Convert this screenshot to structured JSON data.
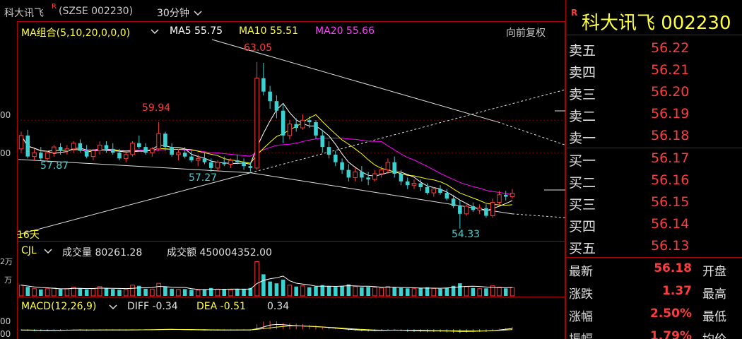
{
  "title_bar": {
    "stock": "科大讯飞",
    "r_marker": "R",
    "code": "(SZSE 002230)",
    "period": "30分钟",
    "period_chevron": "chevron-down-icon"
  },
  "ma_legend": {
    "group": "MA组合(5,10,20,0,0,0)",
    "ma5": "MA5 55.75",
    "ma10": "MA10 55.51",
    "ma20": "MA20 55.66",
    "adjust": "向前复权",
    "colors": {
      "ma5": "#ffffff",
      "ma10": "#ffff00",
      "ma20": "#ff00ff"
    }
  },
  "price_annotations": {
    "high": "63.05",
    "left_high": "59.94",
    "low_left": "57.87",
    "low_mid": "57.27",
    "low_right": "54.33",
    "days": "16天"
  },
  "y_axis_labels": {
    "a": "00",
    "b": "00",
    "vol_a": "2万",
    "vol_b": "万",
    "macd_a": "00",
    "macd_b": "00"
  },
  "volume_legend": {
    "name": "CJL",
    "vol": "成交量 80261.28",
    "amount": "成交额 450004352.00"
  },
  "macd_legend": {
    "name": "MACD(12,26,9)",
    "diff": "DIFF -0.34",
    "dea": "DEA -0.51",
    "macd": "0.34"
  },
  "quote_panel": {
    "r_marker": "R",
    "title": "科大讯飞  002230",
    "sell": [
      {
        "label": "卖五",
        "price": "56.22"
      },
      {
        "label": "卖四",
        "price": "56.21"
      },
      {
        "label": "卖三",
        "price": "56.20"
      },
      {
        "label": "卖二",
        "price": "56.19"
      },
      {
        "label": "卖一",
        "price": "56.18"
      }
    ],
    "buy": [
      {
        "label": "买一",
        "price": "56.17"
      },
      {
        "label": "买二",
        "price": "56.16"
      },
      {
        "label": "买三",
        "price": "56.15"
      },
      {
        "label": "买四",
        "price": "56.14"
      },
      {
        "label": "买五",
        "price": "56.13"
      }
    ],
    "stats": [
      {
        "label": "最新",
        "value": "56.18",
        "label2": "开盘"
      },
      {
        "label": "涨跌",
        "value": "1.37",
        "label2": "最高"
      },
      {
        "label": "涨幅",
        "value": "2.50%",
        "label2": "最低"
      },
      {
        "label": "振幅",
        "value": "1.79%",
        "label2": "均价"
      }
    ]
  },
  "chart_data": {
    "type": "candlestick",
    "unit": "price",
    "ohlc": [
      [
        58.5,
        59.4,
        58.3,
        59.2
      ],
      [
        59.2,
        59.5,
        58.0,
        58.1
      ],
      [
        58.1,
        58.5,
        57.9,
        58.3
      ],
      [
        58.3,
        58.6,
        57.9,
        58.0
      ],
      [
        58.0,
        58.4,
        57.9,
        58.3
      ],
      [
        58.3,
        58.7,
        58.1,
        58.6
      ],
      [
        58.6,
        58.8,
        58.2,
        58.4
      ],
      [
        58.4,
        58.7,
        58.2,
        58.5
      ],
      [
        58.5,
        58.9,
        58.3,
        58.8
      ],
      [
        58.8,
        59.0,
        58.3,
        58.4
      ],
      [
        58.4,
        58.7,
        58.0,
        58.1
      ],
      [
        58.1,
        58.5,
        57.9,
        58.4
      ],
      [
        58.4,
        58.9,
        58.2,
        58.7
      ],
      [
        58.7,
        58.9,
        58.3,
        58.5
      ],
      [
        58.5,
        58.8,
        58.2,
        58.3
      ],
      [
        58.3,
        58.5,
        57.9,
        58.0
      ],
      [
        58.0,
        58.3,
        57.8,
        58.2
      ],
      [
        58.2,
        58.9,
        58.1,
        58.8
      ],
      [
        58.8,
        59.2,
        58.5,
        58.6
      ],
      [
        58.6,
        58.8,
        58.2,
        58.3
      ],
      [
        58.3,
        58.6,
        58.1,
        58.5
      ],
      [
        58.5,
        59.9,
        58.4,
        59.3
      ],
      [
        59.3,
        59.4,
        58.4,
        58.6
      ],
      [
        58.6,
        58.8,
        58.1,
        58.2
      ],
      [
        58.2,
        58.5,
        57.9,
        58.3
      ],
      [
        58.3,
        58.6,
        58.0,
        58.1
      ],
      [
        58.1,
        58.4,
        57.8,
        57.9
      ],
      [
        57.9,
        58.2,
        57.6,
        58.0
      ],
      [
        58.0,
        58.3,
        57.7,
        57.8
      ],
      [
        57.8,
        58.0,
        57.3,
        57.5
      ],
      [
        57.5,
        57.9,
        57.3,
        57.8
      ],
      [
        57.8,
        58.1,
        57.6,
        57.7
      ],
      [
        57.7,
        58.0,
        57.5,
        57.9
      ],
      [
        57.9,
        58.2,
        57.7,
        57.8
      ],
      [
        57.8,
        58.0,
        57.4,
        57.6
      ],
      [
        57.6,
        57.8,
        57.3,
        57.5
      ],
      [
        57.5,
        63.05,
        57.4,
        62.2
      ],
      [
        62.2,
        63.0,
        61.3,
        61.5
      ],
      [
        61.5,
        61.8,
        60.6,
        61.0
      ],
      [
        61.0,
        61.3,
        60.1,
        60.5
      ],
      [
        60.5,
        60.8,
        58.8,
        59.2
      ],
      [
        59.2,
        60.0,
        59.0,
        59.8
      ],
      [
        59.8,
        60.1,
        59.4,
        59.6
      ],
      [
        59.6,
        60.3,
        59.5,
        60.0
      ],
      [
        60.0,
        60.2,
        59.6,
        59.9
      ],
      [
        59.9,
        60.0,
        59.0,
        59.2
      ],
      [
        59.2,
        59.5,
        58.3,
        58.6
      ],
      [
        58.6,
        58.9,
        58.0,
        58.2
      ],
      [
        58.2,
        58.4,
        57.6,
        57.8
      ],
      [
        57.8,
        58.0,
        57.2,
        57.4
      ],
      [
        57.4,
        57.7,
        56.8,
        57.0
      ],
      [
        57.0,
        57.5,
        56.8,
        57.3
      ],
      [
        57.3,
        57.6,
        56.8,
        57.0
      ],
      [
        57.0,
        57.3,
        56.6,
        56.9
      ],
      [
        56.9,
        57.4,
        56.8,
        57.2
      ],
      [
        57.2,
        57.6,
        57.0,
        57.4
      ],
      [
        57.4,
        58.0,
        57.2,
        57.8
      ],
      [
        57.8,
        58.1,
        57.0,
        57.2
      ],
      [
        57.2,
        57.4,
        56.6,
        56.8
      ],
      [
        56.8,
        57.0,
        56.4,
        56.6
      ],
      [
        56.6,
        56.9,
        56.4,
        56.7
      ],
      [
        56.7,
        56.9,
        56.3,
        56.5
      ],
      [
        56.5,
        56.7,
        56.1,
        56.2
      ],
      [
        56.2,
        56.5,
        56.0,
        56.4
      ],
      [
        56.4,
        56.6,
        56.1,
        56.2
      ],
      [
        56.2,
        56.4,
        55.8,
        55.9
      ],
      [
        55.9,
        56.1,
        55.4,
        55.5
      ],
      [
        55.5,
        55.8,
        54.33,
        55.1
      ],
      [
        55.1,
        55.6,
        55.0,
        55.5
      ],
      [
        55.5,
        55.7,
        55.2,
        55.3
      ],
      [
        55.3,
        55.6,
        55.1,
        55.4
      ],
      [
        55.4,
        55.6,
        54.9,
        55.0
      ],
      [
        55.0,
        55.9,
        54.9,
        55.7
      ],
      [
        55.7,
        56.3,
        55.6,
        56.1
      ],
      [
        56.1,
        56.3,
        55.8,
        56.0
      ],
      [
        56.0,
        56.4,
        55.9,
        56.18
      ]
    ],
    "ylim": [
      53.8,
      64.0
    ],
    "volume_ylim": [
      0,
      10
    ],
    "volume": [
      3,
      2.5,
      2,
      1.8,
      2,
      2.2,
      1.9,
      2,
      2.4,
      2.1,
      1.8,
      2,
      2.6,
      2.2,
      1.9,
      1.7,
      1.8,
      3,
      2.8,
      2,
      1.9,
      3.5,
      2.6,
      2,
      1.8,
      1.9,
      1.7,
      1.6,
      1.8,
      2.2,
      1.9,
      1.8,
      1.7,
      1.9,
      2,
      2.2,
      9.5,
      6,
      4,
      3.5,
      4.5,
      3,
      2.6,
      2.8,
      2.4,
      2.6,
      3,
      2.7,
      2.5,
      2.8,
      3.2,
      2.6,
      2.4,
      2.5,
      2.3,
      2.2,
      2.6,
      2.4,
      2.2,
      2.1,
      2,
      2.2,
      2.4,
      2.1,
      2,
      2.3,
      2.8,
      3.5,
      2.6,
      2.2,
      2,
      2.1,
      2.8,
      2.4,
      2.1,
      2.3
    ],
    "macd_ylim": [
      -1.5,
      2.0
    ],
    "macd": [
      -0.2,
      -0.25,
      -0.3,
      -0.3,
      -0.28,
      -0.25,
      -0.22,
      -0.2,
      -0.18,
      -0.2,
      -0.22,
      -0.2,
      -0.15,
      -0.15,
      -0.18,
      -0.2,
      -0.2,
      -0.12,
      -0.1,
      -0.12,
      -0.12,
      0.05,
      0.02,
      -0.05,
      -0.08,
      -0.1,
      -0.14,
      -0.16,
      -0.18,
      -0.22,
      -0.2,
      -0.2,
      -0.18,
      -0.16,
      -0.17,
      -0.18,
      0.8,
      1.2,
      1.3,
      1.25,
      1.0,
      0.9,
      0.85,
      0.8,
      0.72,
      0.6,
      0.45,
      0.3,
      0.15,
      0.0,
      -0.15,
      -0.2,
      -0.3,
      -0.35,
      -0.3,
      -0.25,
      -0.15,
      -0.2,
      -0.3,
      -0.38,
      -0.4,
      -0.42,
      -0.45,
      -0.42,
      -0.42,
      -0.48,
      -0.55,
      -0.6,
      -0.5,
      -0.45,
      -0.4,
      -0.4,
      -0.2,
      0.1,
      0.2,
      0.34
    ]
  }
}
